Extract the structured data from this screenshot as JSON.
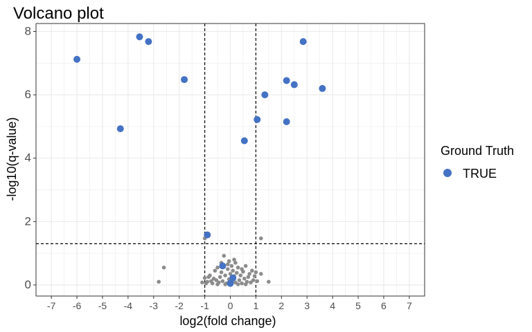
{
  "chart_data": {
    "type": "scatter",
    "title": "Volcano plot",
    "xlabel": "log2(fold change)",
    "ylabel": "-log10(q-value)",
    "xlim": [
      -7.6,
      7.6
    ],
    "ylim": [
      -0.35,
      8.25
    ],
    "x_ticks": [
      -7,
      -6,
      -5,
      -4,
      -3,
      -2,
      -1,
      0,
      1,
      2,
      3,
      4,
      5,
      6,
      7
    ],
    "y_ticks": [
      0,
      2,
      4,
      6,
      8
    ],
    "grid": true,
    "thresholds": {
      "vertical": [
        -1,
        1
      ],
      "horizontal": 1.3
    },
    "legend": {
      "title": "Ground Truth",
      "position": "right",
      "entries": [
        {
          "label": "TRUE",
          "color": "#4472c4"
        }
      ]
    },
    "colors": {
      "true": "#4472c4",
      "other": "#8c8c8c",
      "panel_border": "#333333",
      "grid": "#ebebeb"
    },
    "series": [
      {
        "name": "TRUE",
        "color": "#4472c4",
        "points": [
          {
            "x": -6.0,
            "y": 7.12
          },
          {
            "x": -3.55,
            "y": 7.83
          },
          {
            "x": -3.2,
            "y": 7.68
          },
          {
            "x": -1.8,
            "y": 6.48
          },
          {
            "x": -4.3,
            "y": 4.93
          },
          {
            "x": 2.85,
            "y": 7.68
          },
          {
            "x": 2.2,
            "y": 6.45
          },
          {
            "x": 2.5,
            "y": 6.32
          },
          {
            "x": 3.6,
            "y": 6.2
          },
          {
            "x": 1.35,
            "y": 6.0
          },
          {
            "x": 1.05,
            "y": 5.22
          },
          {
            "x": 2.2,
            "y": 5.15
          },
          {
            "x": 0.55,
            "y": 4.55
          },
          {
            "x": -0.9,
            "y": 1.58
          },
          {
            "x": -0.3,
            "y": 0.6
          },
          {
            "x": 0.0,
            "y": 0.05
          },
          {
            "x": 0.1,
            "y": 0.22
          }
        ]
      },
      {
        "name": "",
        "color": "#8c8c8c",
        "points": [
          {
            "x": -2.6,
            "y": 0.55
          },
          {
            "x": -2.8,
            "y": 0.1
          },
          {
            "x": -1.0,
            "y": 1.47
          },
          {
            "x": 1.2,
            "y": 1.47
          },
          {
            "x": 1.5,
            "y": 0.1
          },
          {
            "x": 1.2,
            "y": 0.35
          },
          {
            "x": -0.25,
            "y": 0.92
          },
          {
            "x": -1.0,
            "y": 0.22
          },
          {
            "x": -1.1,
            "y": 0.08
          },
          {
            "x": -0.9,
            "y": 0.1
          },
          {
            "x": -0.8,
            "y": 0.3
          },
          {
            "x": -0.7,
            "y": 0.05
          },
          {
            "x": -0.6,
            "y": 0.45
          },
          {
            "x": -0.55,
            "y": 0.15
          },
          {
            "x": -0.5,
            "y": 0.55
          },
          {
            "x": -0.45,
            "y": 0.08
          },
          {
            "x": -0.4,
            "y": 0.25
          },
          {
            "x": -0.35,
            "y": 0.4
          },
          {
            "x": -0.3,
            "y": 0.12
          },
          {
            "x": -0.2,
            "y": 0.3
          },
          {
            "x": -0.15,
            "y": 0.05
          },
          {
            "x": -0.1,
            "y": 0.5
          },
          {
            "x": -0.05,
            "y": 0.18
          },
          {
            "x": 0.0,
            "y": 0.35
          },
          {
            "x": 0.05,
            "y": 0.1
          },
          {
            "x": 0.1,
            "y": 0.45
          },
          {
            "x": 0.15,
            "y": 0.28
          },
          {
            "x": 0.2,
            "y": 0.08
          },
          {
            "x": 0.25,
            "y": 0.38
          },
          {
            "x": 0.3,
            "y": 0.55
          },
          {
            "x": 0.35,
            "y": 0.15
          },
          {
            "x": 0.4,
            "y": 0.3
          },
          {
            "x": 0.45,
            "y": 0.05
          },
          {
            "x": 0.5,
            "y": 0.42
          },
          {
            "x": 0.55,
            "y": 0.2
          },
          {
            "x": 0.6,
            "y": 0.6
          },
          {
            "x": 0.65,
            "y": 0.1
          },
          {
            "x": 0.7,
            "y": 0.25
          },
          {
            "x": 0.75,
            "y": 0.35
          },
          {
            "x": 0.8,
            "y": 0.08
          },
          {
            "x": 0.85,
            "y": 0.45
          },
          {
            "x": 0.9,
            "y": 0.15
          },
          {
            "x": 0.95,
            "y": 0.28
          },
          {
            "x": 1.0,
            "y": 0.4
          },
          {
            "x": 1.05,
            "y": 0.12
          },
          {
            "x": -0.65,
            "y": 0.2
          },
          {
            "x": -0.75,
            "y": 0.12
          },
          {
            "x": -0.85,
            "y": 0.25
          },
          {
            "x": -0.95,
            "y": 0.05
          },
          {
            "x": 0.3,
            "y": 0.02
          },
          {
            "x": -0.2,
            "y": 0.02
          },
          {
            "x": 0.6,
            "y": 0.02
          },
          {
            "x": -0.5,
            "y": 0.02
          },
          {
            "x": 0.05,
            "y": 0.6
          },
          {
            "x": -0.1,
            "y": 0.65
          },
          {
            "x": 0.2,
            "y": 0.7
          },
          {
            "x": 0.45,
            "y": 0.5
          },
          {
            "x": -0.35,
            "y": 0.7
          },
          {
            "x": 0.15,
            "y": 0.8
          },
          {
            "x": -0.05,
            "y": 0.75
          }
        ]
      }
    ]
  }
}
